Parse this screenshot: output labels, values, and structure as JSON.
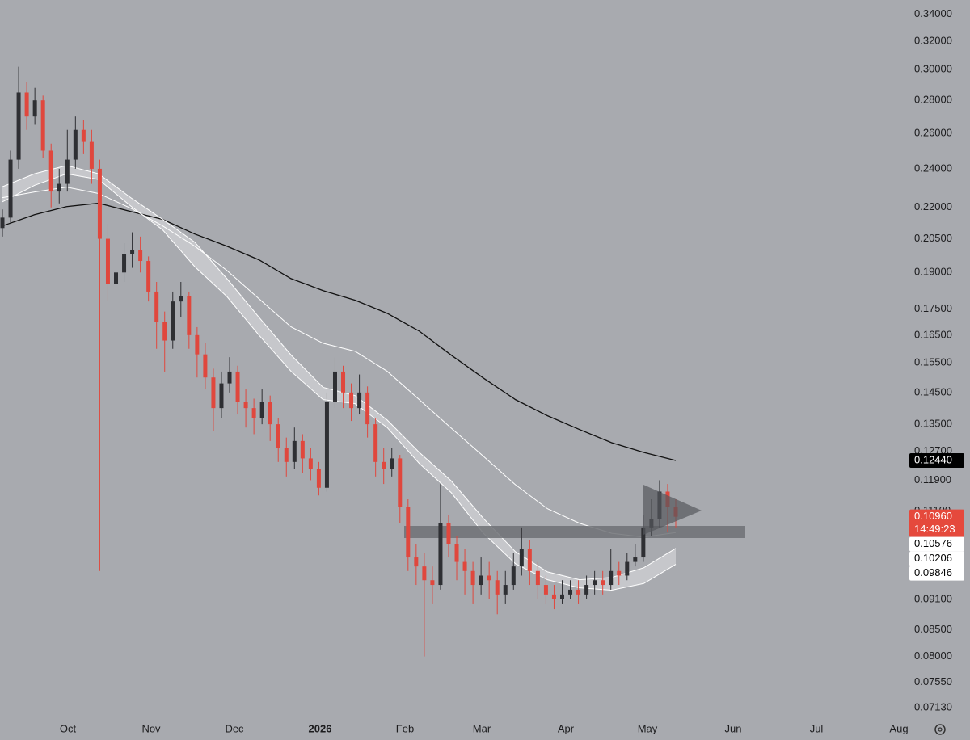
{
  "chart_data": {
    "type": "candlestick",
    "log_scale": true,
    "background": "#a8aaaf",
    "ylim": [
      0.0695,
      0.351
    ],
    "yticks": [
      {
        "value": 0.34,
        "label": "0.34000"
      },
      {
        "value": 0.32,
        "label": "0.32000"
      },
      {
        "value": 0.3,
        "label": "0.30000"
      },
      {
        "value": 0.28,
        "label": "0.28000"
      },
      {
        "value": 0.26,
        "label": "0.26000"
      },
      {
        "value": 0.24,
        "label": "0.24000"
      },
      {
        "value": 0.22,
        "label": "0.22000"
      },
      {
        "value": 0.205,
        "label": "0.20500"
      },
      {
        "value": 0.19,
        "label": "0.19000"
      },
      {
        "value": 0.175,
        "label": "0.17500"
      },
      {
        "value": 0.165,
        "label": "0.16500"
      },
      {
        "value": 0.155,
        "label": "0.15500"
      },
      {
        "value": 0.145,
        "label": "0.14500"
      },
      {
        "value": 0.135,
        "label": "0.13500"
      },
      {
        "value": 0.127,
        "label": "0.12700"
      },
      {
        "value": 0.119,
        "label": "0.11900"
      },
      {
        "value": 0.111,
        "label": "0.11100"
      },
      {
        "value": 0.091,
        "label": "0.09100"
      },
      {
        "value": 0.085,
        "label": "0.08500"
      },
      {
        "value": 0.08,
        "label": "0.08000"
      },
      {
        "value": 0.0755,
        "label": "0.07550"
      },
      {
        "value": 0.0713,
        "label": "0.07130"
      }
    ],
    "x_labels": [
      "Oct",
      "Nov",
      "Dec",
      "2026",
      "Feb",
      "Mar",
      "Apr",
      "May",
      "Jun",
      "Jul",
      "Aug"
    ],
    "up_color": "#2e2f33",
    "down_color": "#e0473d",
    "candles": [
      [
        0.21,
        0.219,
        0.206,
        0.215
      ],
      [
        0.215,
        0.25,
        0.212,
        0.245
      ],
      [
        0.245,
        0.302,
        0.24,
        0.285
      ],
      [
        0.285,
        0.292,
        0.262,
        0.27
      ],
      [
        0.27,
        0.288,
        0.265,
        0.28
      ],
      [
        0.28,
        0.283,
        0.246,
        0.25
      ],
      [
        0.25,
        0.254,
        0.22,
        0.228
      ],
      [
        0.228,
        0.24,
        0.222,
        0.232
      ],
      [
        0.232,
        0.262,
        0.228,
        0.245
      ],
      [
        0.245,
        0.27,
        0.24,
        0.262
      ],
      [
        0.262,
        0.268,
        0.248,
        0.255
      ],
      [
        0.255,
        0.262,
        0.232,
        0.24
      ],
      [
        0.24,
        0.245,
        0.097,
        0.205
      ],
      [
        0.205,
        0.212,
        0.178,
        0.185
      ],
      [
        0.185,
        0.196,
        0.18,
        0.19
      ],
      [
        0.19,
        0.203,
        0.186,
        0.198
      ],
      [
        0.198,
        0.208,
        0.192,
        0.2
      ],
      [
        0.2,
        0.206,
        0.19,
        0.195
      ],
      [
        0.195,
        0.197,
        0.178,
        0.182
      ],
      [
        0.182,
        0.186,
        0.16,
        0.17
      ],
      [
        0.17,
        0.174,
        0.152,
        0.163
      ],
      [
        0.163,
        0.182,
        0.16,
        0.178
      ],
      [
        0.178,
        0.186,
        0.172,
        0.18
      ],
      [
        0.18,
        0.182,
        0.16,
        0.165
      ],
      [
        0.165,
        0.168,
        0.15,
        0.158
      ],
      [
        0.158,
        0.162,
        0.146,
        0.15
      ],
      [
        0.15,
        0.153,
        0.133,
        0.14
      ],
      [
        0.14,
        0.152,
        0.137,
        0.148
      ],
      [
        0.148,
        0.157,
        0.145,
        0.152
      ],
      [
        0.152,
        0.154,
        0.138,
        0.142
      ],
      [
        0.142,
        0.146,
        0.134,
        0.14
      ],
      [
        0.14,
        0.143,
        0.132,
        0.137
      ],
      [
        0.137,
        0.146,
        0.135,
        0.142
      ],
      [
        0.142,
        0.144,
        0.13,
        0.135
      ],
      [
        0.135,
        0.137,
        0.124,
        0.128
      ],
      [
        0.128,
        0.131,
        0.12,
        0.124
      ],
      [
        0.124,
        0.134,
        0.122,
        0.13
      ],
      [
        0.13,
        0.132,
        0.121,
        0.125
      ],
      [
        0.125,
        0.128,
        0.119,
        0.122
      ],
      [
        0.122,
        0.124,
        0.115,
        0.117
      ],
      [
        0.117,
        0.145,
        0.116,
        0.142
      ],
      [
        0.142,
        0.157,
        0.14,
        0.152
      ],
      [
        0.152,
        0.154,
        0.14,
        0.145
      ],
      [
        0.145,
        0.148,
        0.136,
        0.14
      ],
      [
        0.14,
        0.151,
        0.138,
        0.145
      ],
      [
        0.145,
        0.147,
        0.131,
        0.135
      ],
      [
        0.135,
        0.137,
        0.12,
        0.124
      ],
      [
        0.124,
        0.128,
        0.118,
        0.122
      ],
      [
        0.122,
        0.128,
        0.12,
        0.125
      ],
      [
        0.125,
        0.126,
        0.108,
        0.112
      ],
      [
        0.112,
        0.114,
        0.097,
        0.1
      ],
      [
        0.1,
        0.103,
        0.094,
        0.098
      ],
      [
        0.098,
        0.101,
        0.08,
        0.095
      ],
      [
        0.095,
        0.098,
        0.09,
        0.094
      ],
      [
        0.094,
        0.118,
        0.093,
        0.108
      ],
      [
        0.108,
        0.11,
        0.1,
        0.103
      ],
      [
        0.103,
        0.105,
        0.095,
        0.099
      ],
      [
        0.099,
        0.102,
        0.092,
        0.097
      ],
      [
        0.097,
        0.099,
        0.09,
        0.094
      ],
      [
        0.094,
        0.1,
        0.092,
        0.096
      ],
      [
        0.096,
        0.099,
        0.091,
        0.095
      ],
      [
        0.095,
        0.097,
        0.088,
        0.092
      ],
      [
        0.092,
        0.097,
        0.09,
        0.094
      ],
      [
        0.094,
        0.101,
        0.093,
        0.098
      ],
      [
        0.098,
        0.107,
        0.096,
        0.102
      ],
      [
        0.102,
        0.104,
        0.094,
        0.097
      ],
      [
        0.097,
        0.099,
        0.091,
        0.094
      ],
      [
        0.094,
        0.096,
        0.09,
        0.092
      ],
      [
        0.092,
        0.094,
        0.089,
        0.091
      ],
      [
        0.091,
        0.095,
        0.09,
        0.092
      ],
      [
        0.092,
        0.095,
        0.091,
        0.093
      ],
      [
        0.093,
        0.095,
        0.09,
        0.092
      ],
      [
        0.092,
        0.096,
        0.091,
        0.094
      ],
      [
        0.094,
        0.097,
        0.092,
        0.095
      ],
      [
        0.095,
        0.097,
        0.092,
        0.094
      ],
      [
        0.094,
        0.102,
        0.093,
        0.097
      ],
      [
        0.097,
        0.099,
        0.094,
        0.096
      ],
      [
        0.096,
        0.101,
        0.095,
        0.099
      ],
      [
        0.099,
        0.103,
        0.098,
        0.1
      ],
      [
        0.1,
        0.11,
        0.099,
        0.107
      ],
      [
        0.107,
        0.114,
        0.105,
        0.109
      ],
      [
        0.109,
        0.119,
        0.107,
        0.116
      ],
      [
        0.116,
        0.118,
        0.106,
        0.112
      ],
      [
        0.112,
        0.114,
        0.107,
        0.1096
      ]
    ],
    "series": [
      {
        "color": "#111111",
        "values": [
          0.211,
          0.2164,
          0.2204,
          0.2221,
          0.218,
          0.2141,
          0.2072,
          0.2016,
          0.1955,
          0.1874,
          0.1824,
          0.1785,
          0.1733,
          0.1665,
          0.1577,
          0.1498,
          0.1427,
          0.1376,
          0.1334,
          0.1295,
          0.1267,
          0.1244
        ]
      },
      {
        "color": "#ffffff",
        "values": [
          0.2249,
          0.2278,
          0.2303,
          0.227,
          0.2196,
          0.211,
          0.2016,
          0.1909,
          0.1791,
          0.1681,
          0.162,
          0.1591,
          0.1521,
          0.1427,
          0.1338,
          0.1256,
          0.1178,
          0.1116,
          0.108,
          0.1056,
          0.1047,
          0.10576
        ]
      },
      {
        "color": "#ffffff",
        "values": [
          0.2305,
          0.2373,
          0.2418,
          0.2373,
          0.2249,
          0.2141,
          0.2034,
          0.1874,
          0.1718,
          0.1578,
          0.1467,
          0.144,
          0.1363,
          0.1267,
          0.1188,
          0.1092,
          0.1013,
          0.0968,
          0.0951,
          0.0956,
          0.0977,
          0.10206
        ]
      },
      {
        "color": "#ffffff",
        "values": [
          0.2228,
          0.2312,
          0.2373,
          0.2343,
          0.2207,
          0.2091,
          0.1925,
          0.18,
          0.165,
          0.1521,
          0.1427,
          0.1414,
          0.134,
          0.1236,
          0.1157,
          0.1056,
          0.0986,
          0.0951,
          0.0934,
          0.0929,
          0.0943,
          0.09846
        ]
      }
    ],
    "price_labels": [
      {
        "value": 0.1244,
        "label": "0.12440",
        "color": "#000000",
        "text_color": "#ffffff"
      },
      {
        "value": 0.1096,
        "label": "0.10960",
        "sublabel": "14:49:23",
        "color": "#e5493c",
        "text_color": "#ffffff"
      },
      {
        "value": 0.10576,
        "label": "0.10576",
        "color": "#ffffff",
        "text_color": "#000000"
      },
      {
        "value": 0.10206,
        "label": "0.10206",
        "color": "#ffffff",
        "text_color": "#000000"
      },
      {
        "value": 0.09846,
        "label": "0.09846",
        "color": "#ffffff",
        "text_color": "#000000"
      }
    ]
  }
}
